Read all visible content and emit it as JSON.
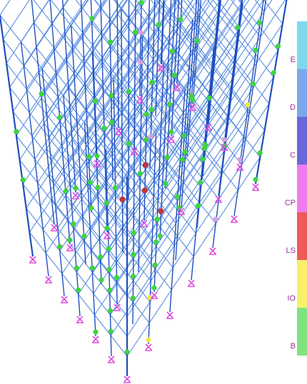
{
  "legend": {
    "levels": [
      {
        "label": "E",
        "color": "#7fd9ec"
      },
      {
        "label": "D",
        "color": "#7aa8ea"
      },
      {
        "label": "C",
        "color": "#6a67d8"
      },
      {
        "label": "CP",
        "color": "#f07bef"
      },
      {
        "label": "LS",
        "color": "#ee5a5a"
      },
      {
        "label": "IO",
        "color": "#f6f06a"
      },
      {
        "label": "B",
        "color": "#7fe37f"
      }
    ],
    "label_color": "#9a2f9a"
  },
  "model": {
    "frame_color": "#1f4fbf",
    "beam_color": "#5b8fe0",
    "support_color": "#e04fe0",
    "hinge_colors": {
      "B_to_IO": "#3fd43f",
      "IO_to_LS": "#f0e84a",
      "LS_to_CP": "#d9a0d9",
      "collapse": "#c0363a"
    }
  }
}
